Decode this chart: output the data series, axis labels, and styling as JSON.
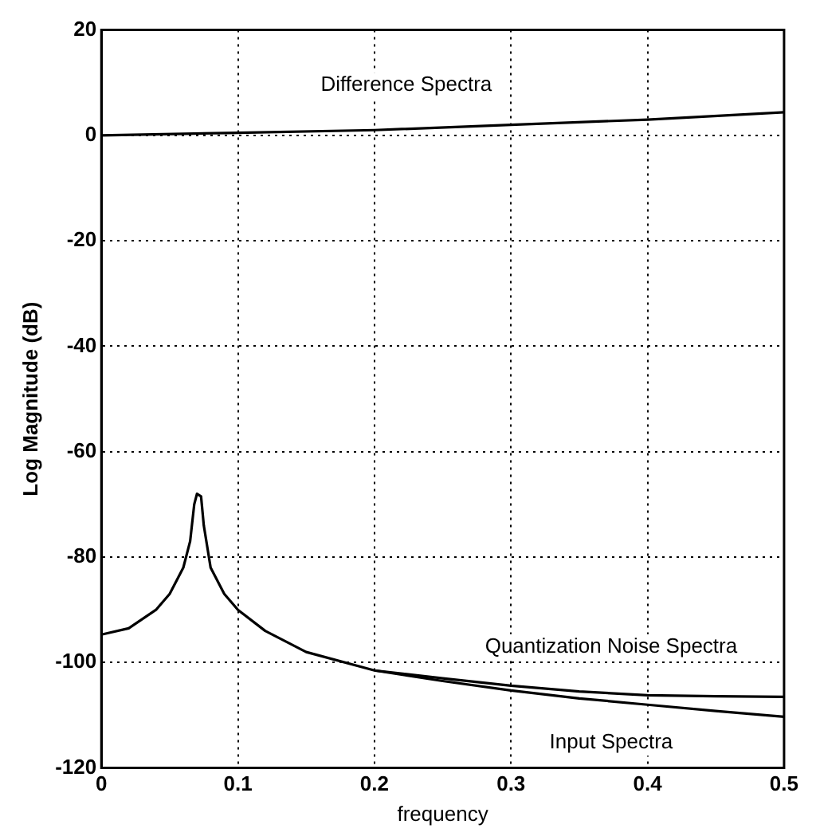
{
  "chart_data": {
    "type": "line",
    "xlabel": "frequency",
    "ylabel": "Log Magnitude (dB)",
    "xlim": [
      0,
      0.5
    ],
    "xticks": [
      0,
      0.1,
      0.2,
      0.3,
      0.4,
      0.5
    ],
    "ylim": [
      -120,
      20
    ],
    "yticks": [
      -120,
      -100,
      -80,
      -60,
      -40,
      -20,
      0,
      20
    ],
    "grid": true,
    "legend": false,
    "marker": "none",
    "line_style": "solid",
    "series": [
      {
        "name": "Difference Spectra",
        "color": "#000000",
        "x": [
          0,
          0.1,
          0.2,
          0.3,
          0.4,
          0.5
        ],
        "values": [
          0,
          0.5,
          1,
          2,
          3,
          4.4
        ]
      },
      {
        "name": "Quantization Noise Spectra",
        "color": "#000000",
        "x": [
          0,
          0.02,
          0.04,
          0.05,
          0.06,
          0.065,
          0.068,
          0.07,
          0.073,
          0.075,
          0.08,
          0.09,
          0.1,
          0.12,
          0.15,
          0.2,
          0.25,
          0.3,
          0.35,
          0.4,
          0.45,
          0.5
        ],
        "values": [
          -94.7,
          -93.5,
          -90,
          -87,
          -82,
          -77,
          -70,
          -68,
          -68.5,
          -74,
          -82,
          -87,
          -90,
          -94,
          -98,
          -101.5,
          -103,
          -104.4,
          -105.5,
          -106.2,
          -106.4,
          -106.5
        ]
      },
      {
        "name": "Input Spectra",
        "color": "#000000",
        "x": [
          0.2,
          0.25,
          0.3,
          0.35,
          0.4,
          0.45,
          0.5
        ],
        "values": [
          -101.5,
          -103.5,
          -105.3,
          -106.8,
          -108,
          -109.2,
          -110.3
        ]
      }
    ]
  }
}
